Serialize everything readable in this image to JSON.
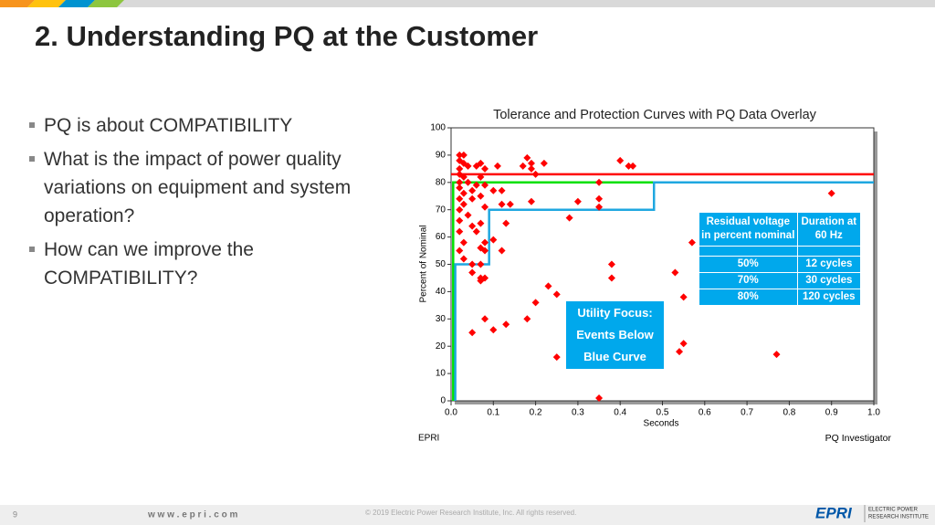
{
  "slide": {
    "title": "2. Understanding PQ at the Customer",
    "bullets": [
      [
        "PQ is about COMPATIBILITY"
      ],
      [
        "What is the impact of power quality",
        "variations on equipment and system",
        "operation?"
      ],
      [
        "How can we improve the",
        "COMPATIBILITY?"
      ]
    ],
    "table": {
      "header": [
        "Residual voltage in percent nominal",
        "Duration at 60 Hz"
      ],
      "rows": [
        [
          "50%",
          "12 cycles"
        ],
        [
          "70%",
          "30 cycles"
        ],
        [
          "80%",
          "120 cycles"
        ]
      ]
    },
    "note": [
      "Utility Focus:",
      "Events Below",
      "Blue Curve"
    ],
    "footer": {
      "page": "9",
      "url": "w w w . e p r i . c o m",
      "copyright": "© 2019 Electric Power Research Institute, Inc. All rights reserved.",
      "logo": "EPRI",
      "logo_text": [
        "ELECTRIC POWER",
        "RESEARCH INSTITUTE"
      ]
    }
  },
  "chart_data": {
    "type": "scatter",
    "title": "Tolerance and Protection Curves with PQ Data Overlay",
    "x_label": "Seconds",
    "y_label": "Percent of Nominal",
    "left_caption": "EPRI",
    "right_caption": "PQ Investigator",
    "xlim": [
      0,
      1
    ],
    "ylim": [
      0,
      100
    ],
    "xticks": [
      {
        "value": 0,
        "label": "0.0"
      },
      0.1,
      0.2,
      0.3,
      0.4,
      0.5,
      0.6,
      0.7,
      0.8,
      0.9,
      {
        "value": 1,
        "label": "1.0"
      }
    ],
    "yticks": [
      0,
      10,
      20,
      30,
      40,
      50,
      60,
      70,
      80,
      90,
      100
    ],
    "series": [
      {
        "kind": "marker",
        "color": "#ff0000",
        "x": [
          0.02,
          0.03,
          0.02,
          0.03,
          0.02,
          0.04,
          0.02,
          0.03,
          0.02,
          0.04,
          0.02,
          0.03,
          0.05,
          0.02,
          0.03,
          0.05,
          0.02,
          0.04,
          0.02,
          0.05,
          0.02,
          0.03,
          0.02,
          0.03,
          0.05,
          0.05,
          0.07,
          0.07,
          0.07,
          0.08,
          0.06,
          0.07,
          0.08,
          0.07,
          0.08,
          0.06,
          0.07,
          0.08,
          0.07,
          0.06,
          0.08,
          0.07,
          0.08,
          0.1,
          0.1,
          0.11,
          0.12,
          0.12,
          0.14,
          0.12,
          0.13,
          0.17,
          0.18,
          0.19,
          0.19,
          0.2,
          0.22,
          0.19,
          0.28,
          0.3,
          0.35,
          0.35,
          0.35,
          0.4,
          0.42,
          0.43,
          0.05,
          0.1,
          0.08,
          0.13,
          0.18,
          0.2,
          0.23,
          0.25,
          0.25,
          0.35,
          0.38,
          0.38,
          0.53,
          0.54,
          0.55,
          0.55,
          0.57,
          0.77,
          0.9
        ],
        "values": [
          90,
          90,
          88,
          87,
          85,
          86,
          83,
          82,
          80,
          80,
          78,
          76,
          77,
          74,
          72,
          74,
          70,
          68,
          66,
          64,
          62,
          58,
          55,
          52,
          50,
          47,
          50,
          45,
          44,
          45,
          86,
          87,
          85,
          82,
          79,
          79,
          75,
          71,
          65,
          62,
          58,
          56,
          55,
          77,
          59,
          86,
          77,
          72,
          72,
          55,
          65,
          86,
          89,
          85,
          87,
          83,
          87,
          73,
          67,
          73,
          80,
          74,
          71,
          88,
          86,
          86,
          25,
          26,
          30,
          28,
          30,
          36,
          42,
          39,
          16,
          1,
          50,
          45,
          47,
          18,
          21,
          38,
          58,
          17,
          76
        ]
      },
      {
        "kind": "line",
        "color": "#ff0000",
        "x": [
          0,
          1
        ],
        "values": [
          83,
          83
        ]
      },
      {
        "kind": "line",
        "color": "#00e000",
        "x": [
          0.005,
          0.005,
          1
        ],
        "values": [
          0,
          80,
          80
        ]
      },
      {
        "kind": "line",
        "color": "#1fa7e0",
        "x": [
          0.01,
          0.01,
          0.09,
          0.09,
          0.48,
          0.48,
          1
        ],
        "values": [
          0,
          50,
          50,
          70,
          70,
          80,
          80
        ]
      }
    ]
  }
}
